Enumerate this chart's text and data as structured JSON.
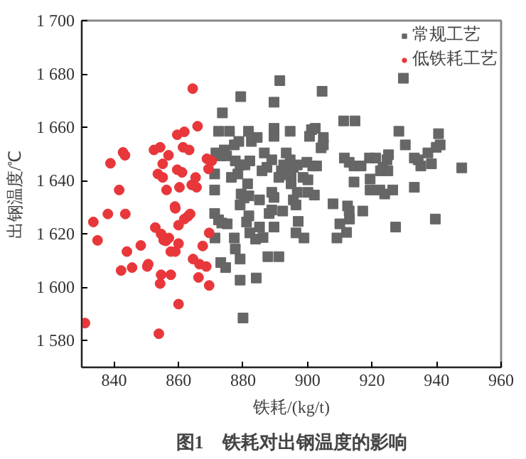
{
  "chart_data": {
    "type": "scatter",
    "title": "图1　铁耗对出钢温度的影响",
    "xlabel": "铁耗/(kg/t)",
    "ylabel": "出钢温度/℃",
    "xlim": [
      830,
      960
    ],
    "xticks": [
      840,
      860,
      880,
      900,
      920,
      940,
      960
    ],
    "ylim": [
      1570,
      1700
    ],
    "yticks": [
      {
        "value": 1580,
        "label": "1 580"
      },
      {
        "value": 1600,
        "label": "1 600"
      },
      {
        "value": 1620,
        "label": "1 620"
      },
      {
        "value": 1640,
        "label": "1 640"
      },
      {
        "value": 1660,
        "label": "1 660"
      },
      {
        "value": 1680,
        "label": "1 680"
      },
      {
        "value": 1700,
        "label": "1 700"
      }
    ],
    "grid": false,
    "legend": "top right",
    "series": [
      {
        "name": "常规工艺",
        "color": "#666666",
        "marker": "square",
        "x": [
          891.4,
          929.7,
          879.3,
          904.5,
          889.6,
          873.6,
          872.4,
          875.8,
          881.7,
          878.7,
          877.3,
          882.6,
          884.4,
          889.6,
          889.6,
          894.6,
          901.2,
          902.4,
          900.6,
          904.9,
          904.9,
          904.2,
          911.2,
          914.7,
          928.3,
          930.3,
          940.6,
          941.1,
          939.9,
          937.3,
          871.6,
          874.2,
          873.1,
          874.9,
          877.6,
          879.1,
          880.6,
          882.1,
          886.6,
          888.9,
          887.4,
          885.9,
          893.4,
          892.6,
          894.6,
          896.8,
          895.6,
          899.8,
          901.6,
          902.8,
          891.9,
          893.4,
          891.1,
          894.9,
          898.6,
          900.1,
          911.4,
          912.9,
          914.4,
          916.6,
          919.2,
          921.1,
          925.1,
          924.6,
          923.4,
          924.9,
          922.6,
          933.1,
          934.3,
          935.1,
          938.4,
          947.8,
          876.4,
          878.4,
          871.2,
          871.2,
          881.4,
          879.4,
          880.3,
          881.8,
          879.1,
          888.9,
          889.6,
          885.1,
          894.9,
          896.8,
          895.6,
          896.4,
          900.1,
          902.1,
          914.4,
          919.4,
          919.4,
          922.4,
          923.9,
          926.4,
          933.1,
          871.2,
          872.4,
          873.4,
          875.1,
          881.1,
          881.8,
          888.1,
          888.9,
          892.3,
          885.1,
          882.1,
          883.9,
          886.2,
          889.6,
          897.1,
          896.4,
          898.9,
          907.9,
          912.4,
          912.9,
          913.0,
          910.0,
          912.1,
          909.1,
          917.1,
          927.3,
          939.6,
          877.3,
          871.3,
          877.6,
          879.1,
          873.1,
          874.6,
          887.7,
          891.1,
          879.1,
          884.1,
          880.0
        ],
        "values": [
          1677.5,
          1678.4,
          1671.5,
          1673.5,
          1669.4,
          1665.4,
          1658.5,
          1658.5,
          1658.5,
          1654.7,
          1653.4,
          1654.7,
          1656.2,
          1659.6,
          1656.6,
          1658.5,
          1659.1,
          1659.6,
          1656.6,
          1656.2,
          1653.4,
          1652.3,
          1662.4,
          1662.4,
          1658.5,
          1653.4,
          1657.6,
          1653.4,
          1652.5,
          1650.4,
          1650.4,
          1651.5,
          1649.3,
          1649.3,
          1647.4,
          1645.9,
          1645.9,
          1647.4,
          1650.4,
          1647.8,
          1645.0,
          1643.7,
          1650.4,
          1645.9,
          1647.8,
          1645.9,
          1645.0,
          1646.9,
          1645.5,
          1645.5,
          1643.7,
          1642.2,
          1641.2,
          1641.8,
          1641.2,
          1640.3,
          1648.5,
          1646.9,
          1645.5,
          1645.5,
          1648.5,
          1648.5,
          1649.7,
          1647.8,
          1645.0,
          1643.7,
          1643.7,
          1648.5,
          1647.8,
          1645.5,
          1646.3,
          1644.8,
          1641.2,
          1642.5,
          1642.5,
          1636.5,
          1638.8,
          1635.0,
          1633.5,
          1634.3,
          1630.9,
          1635.6,
          1633.7,
          1632.8,
          1638.8,
          1635.6,
          1632.8,
          1630.9,
          1635.6,
          1634.6,
          1639.5,
          1640.6,
          1636.5,
          1636.5,
          1635.0,
          1636.5,
          1637.5,
          1627.7,
          1625.3,
          1624.1,
          1623.8,
          1624.5,
          1626.8,
          1627.7,
          1629.0,
          1628.6,
          1622.6,
          1620.4,
          1618.1,
          1618.7,
          1622.6,
          1624.7,
          1620.4,
          1618.5,
          1631.3,
          1630.5,
          1628.6,
          1625.6,
          1623.8,
          1620.6,
          1618.5,
          1628.6,
          1622.6,
          1625.6,
          1618.5,
          1618.5,
          1614.4,
          1610.6,
          1609.3,
          1607.4,
          1611.5,
          1611.5,
          1602.7,
          1603.5,
          1588.5
        ]
      },
      {
        "name": "低铁耗工艺",
        "color": "#e8373a",
        "marker": "circle",
        "x": [
          838.9,
          842.8,
          843.4,
          841.6,
          852.4,
          854.3,
          855.1,
          856.9,
          853.6,
          855.1,
          856.3,
          859.6,
          861.8,
          864.4,
          865.9,
          861.4,
          863.3,
          859.6,
          861.1,
          860.3,
          864.1,
          865.6,
          865.3,
          868.8,
          870.3,
          869.3,
          858.9,
          833.6,
          838.1,
          843.5,
          834.9,
          842.2,
          845.6,
          844.0,
          848.3,
          850.3,
          850.6,
          852.8,
          854.6,
          855.4,
          857.0,
          856.1,
          857.6,
          859.0,
          860.0,
          859.0,
          861.8,
          862.9,
          863.6,
          860.0,
          869.5,
          867.5,
          864.5,
          866.5,
          868.6,
          866.2,
          869.5,
          854.6,
          854.3,
          857.6,
          860.0,
          853.9,
          831.0
        ],
        "values": [
          1646.5,
          1650.6,
          1649.5,
          1636.5,
          1651.5,
          1652.5,
          1646.3,
          1649.5,
          1642.5,
          1641.2,
          1636.5,
          1657.2,
          1658.3,
          1674.5,
          1660.4,
          1652.5,
          1651.5,
          1644.1,
          1643.1,
          1637.5,
          1638.4,
          1637.5,
          1641.2,
          1648.2,
          1647.4,
          1644.4,
          1630.3,
          1624.5,
          1627.5,
          1627.5,
          1617.6,
          1606.3,
          1607.4,
          1613.4,
          1615.7,
          1607.8,
          1608.7,
          1622.4,
          1620.0,
          1617.7,
          1618.5,
          1617.4,
          1613.4,
          1613.4,
          1616.4,
          1629.6,
          1625.6,
          1626.6,
          1627.5,
          1623.3,
          1620.4,
          1615.5,
          1610.6,
          1608.7,
          1607.8,
          1603.7,
          1600.7,
          1604.7,
          1601.4,
          1604.7,
          1593.7,
          1582.6,
          1586.6
        ]
      }
    ]
  }
}
